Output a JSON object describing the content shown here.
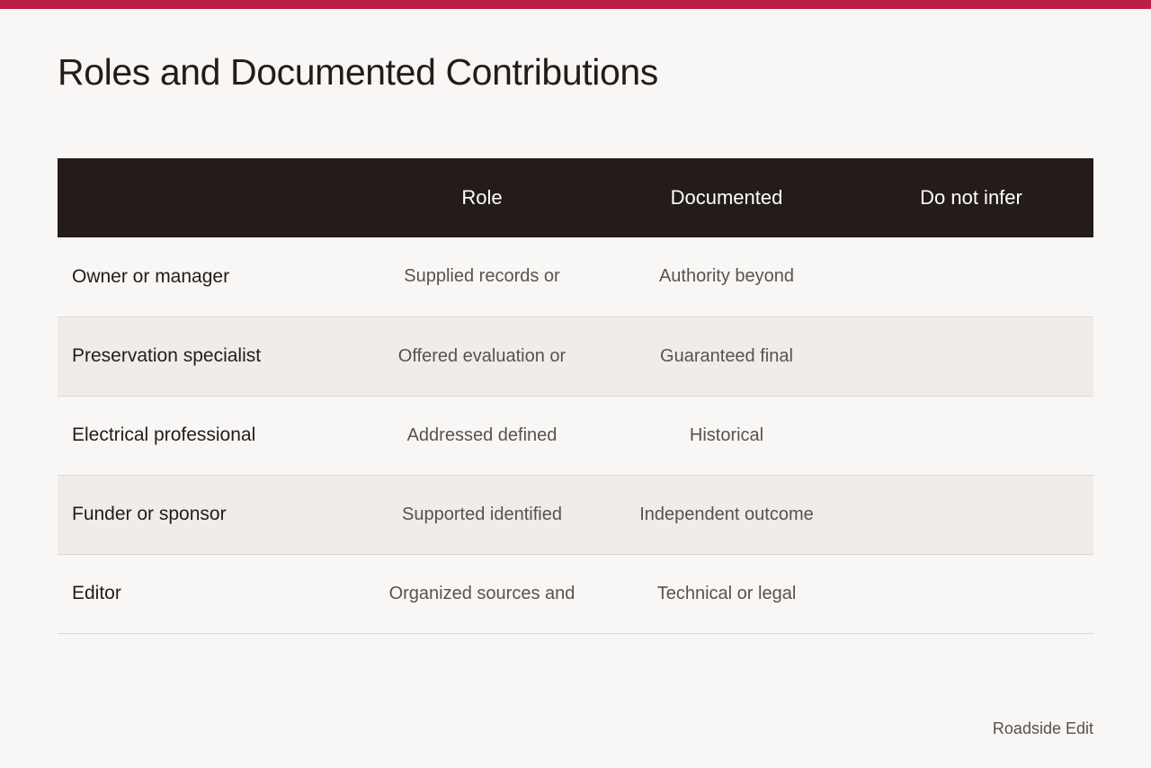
{
  "page": {
    "title": "Roles and Documented Contributions",
    "accent_color": "#b91f47",
    "header_background": "#241c19"
  },
  "table": {
    "columns": [
      "",
      "Role",
      "Documented",
      "Do not infer"
    ],
    "rows": [
      {
        "label": "Owner or manager",
        "role": "Supplied records or",
        "documented": "Authority beyond",
        "do_not_infer": ""
      },
      {
        "label": "Preservation specialist",
        "role": "Offered evaluation or",
        "documented": "Guaranteed final",
        "do_not_infer": ""
      },
      {
        "label": "Electrical professional",
        "role": "Addressed defined",
        "documented": "Historical",
        "do_not_infer": ""
      },
      {
        "label": "Funder or sponsor",
        "role": "Supported identified",
        "documented": "Independent outcome",
        "do_not_infer": ""
      },
      {
        "label": "Editor",
        "role": "Organized sources and",
        "documented": "Technical or legal",
        "do_not_infer": ""
      }
    ]
  },
  "footer": {
    "brand": "Roadside Edit"
  }
}
